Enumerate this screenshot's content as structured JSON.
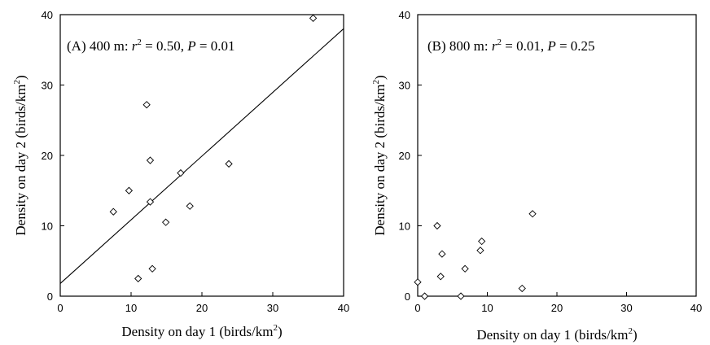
{
  "chart_data": [
    {
      "type": "scatter",
      "panel": "A",
      "annotation": {
        "prefix": "(A) 400 m: ",
        "r": "r",
        "sup": "2",
        "eq1": " = 0.50, ",
        "p": "P",
        "eq2": " = 0.01"
      },
      "xlabel": "Density on day 1 (birds/km",
      "xlabel_sup": "2",
      "xlabel_end": ")",
      "ylabel": "Density on day 2 (birds/km",
      "ylabel_sup": "2",
      "ylabel_end": ")",
      "xlim": [
        0,
        40
      ],
      "ylim": [
        0,
        40
      ],
      "xticks": [
        0,
        10,
        20,
        30,
        40
      ],
      "yticks": [
        0,
        10,
        20,
        30,
        40
      ],
      "points": [
        {
          "x": 7.5,
          "y": 12.0
        },
        {
          "x": 9.7,
          "y": 15.0
        },
        {
          "x": 11.0,
          "y": 2.5
        },
        {
          "x": 12.2,
          "y": 27.2
        },
        {
          "x": 12.7,
          "y": 19.3
        },
        {
          "x": 12.7,
          "y": 13.4
        },
        {
          "x": 13.0,
          "y": 3.9
        },
        {
          "x": 14.9,
          "y": 10.5
        },
        {
          "x": 17.0,
          "y": 17.5
        },
        {
          "x": 18.3,
          "y": 12.8
        },
        {
          "x": 23.8,
          "y": 18.8
        },
        {
          "x": 35.7,
          "y": 39.5
        }
      ],
      "fit_line": {
        "x": [
          0,
          40
        ],
        "y": [
          1.8,
          38.0
        ]
      }
    },
    {
      "type": "scatter",
      "panel": "B",
      "annotation": {
        "prefix": "(B) 800 m: ",
        "r": "r",
        "sup": "2",
        "eq1": " = 0.01, ",
        "p": "P",
        "eq2": " = 0.25"
      },
      "xlabel": "Density on day 1 (birds/km",
      "xlabel_sup": "2",
      "xlabel_end": ")",
      "ylabel": "Density on day 2 (birds/km",
      "ylabel_sup": "2",
      "ylabel_end": ")",
      "xlim": [
        0,
        40
      ],
      "ylim": [
        0,
        40
      ],
      "xticks": [
        0,
        10,
        20,
        30,
        40
      ],
      "yticks": [
        0,
        10,
        20,
        30,
        40
      ],
      "points": [
        {
          "x": 0.0,
          "y": 2.0
        },
        {
          "x": 1.0,
          "y": 0.0
        },
        {
          "x": 2.8,
          "y": 10.0
        },
        {
          "x": 3.3,
          "y": 2.8
        },
        {
          "x": 3.5,
          "y": 6.0
        },
        {
          "x": 6.2,
          "y": 0.0
        },
        {
          "x": 6.8,
          "y": 3.9
        },
        {
          "x": 9.0,
          "y": 6.5
        },
        {
          "x": 9.2,
          "y": 7.8
        },
        {
          "x": 15.0,
          "y": 1.1
        },
        {
          "x": 16.5,
          "y": 11.7
        }
      ]
    }
  ]
}
